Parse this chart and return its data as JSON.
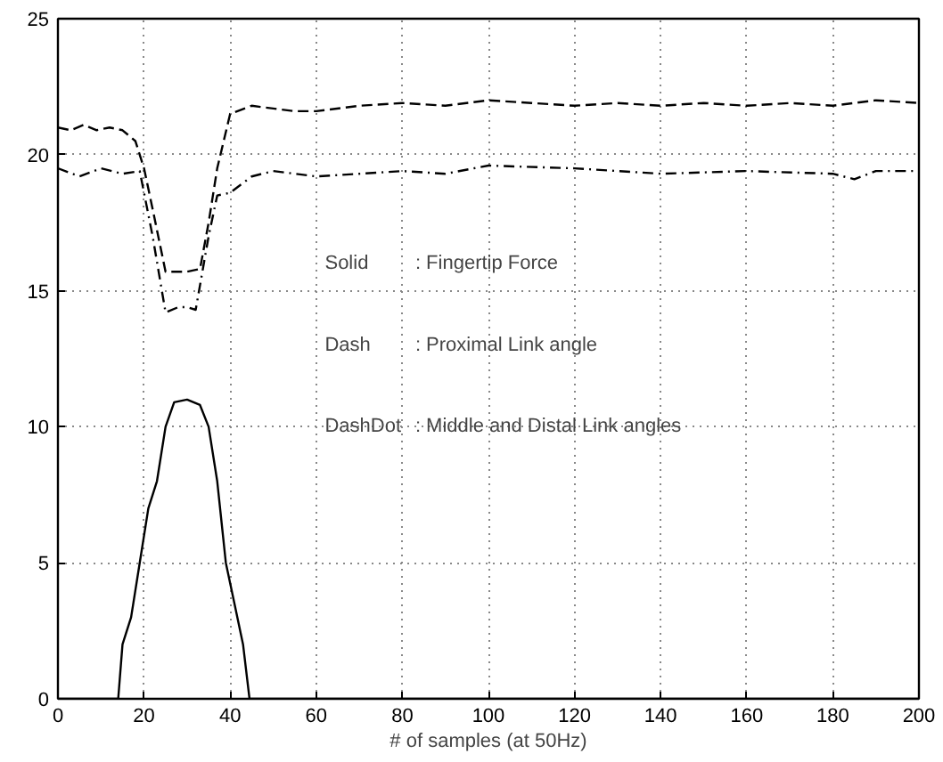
{
  "chart_data": {
    "type": "line",
    "xlabel": "# of samples (at 50Hz)",
    "xlim": [
      0,
      200
    ],
    "ylim": [
      0,
      25
    ],
    "xticks": [
      0,
      20,
      40,
      60,
      80,
      100,
      120,
      140,
      160,
      180,
      200
    ],
    "yticks": [
      0,
      5,
      10,
      15,
      20,
      25
    ],
    "grid": true,
    "annotations": [
      "Solid    : Fingertip Force",
      "Dash     : Proximal Link angle",
      "DashDot  : Middle and Distal Link angles"
    ],
    "series": [
      {
        "color": "#000000",
        "line_style": "solid",
        "x": [
          0,
          10,
          14,
          15,
          17,
          19,
          21,
          23,
          25,
          27,
          30,
          33,
          35,
          37,
          39,
          41,
          43,
          44.5,
          50,
          100,
          150,
          200
        ],
        "values": [
          0,
          0,
          0,
          2,
          3,
          5,
          7,
          8,
          10,
          10.9,
          11,
          10.8,
          10,
          8,
          5,
          3.5,
          2,
          0,
          0,
          0,
          0,
          0
        ]
      },
      {
        "color": "#000000",
        "line_style": "dashed",
        "x": [
          0,
          3,
          6,
          9,
          12,
          15,
          18,
          20,
          22,
          25,
          30,
          33,
          35,
          37,
          40,
          45,
          50,
          55,
          60,
          70,
          80,
          90,
          100,
          110,
          120,
          130,
          140,
          150,
          160,
          170,
          180,
          190,
          200
        ],
        "values": [
          21,
          20.9,
          21.1,
          20.9,
          21,
          20.9,
          20.5,
          19.5,
          18,
          15.7,
          15.7,
          15.8,
          17.5,
          19.5,
          21.5,
          21.8,
          21.7,
          21.6,
          21.6,
          21.8,
          21.9,
          21.8,
          22,
          21.9,
          21.8,
          21.9,
          21.8,
          21.9,
          21.8,
          21.9,
          21.8,
          22,
          21.9
        ]
      },
      {
        "color": "#000000",
        "line_style": "dashdot",
        "x": [
          0,
          5,
          10,
          15,
          19,
          22,
          25,
          28,
          30,
          32,
          35,
          37,
          40,
          45,
          50,
          60,
          70,
          80,
          90,
          100,
          120,
          140,
          160,
          180,
          185,
          190,
          200
        ],
        "values": [
          19.5,
          19.2,
          19.5,
          19.3,
          19.4,
          17,
          14.2,
          14.4,
          14.4,
          14.3,
          17,
          18.5,
          18.6,
          19.2,
          19.4,
          19.2,
          19.3,
          19.4,
          19.3,
          19.6,
          19.5,
          19.3,
          19.4,
          19.3,
          19.1,
          19.4,
          19.4
        ]
      }
    ]
  }
}
